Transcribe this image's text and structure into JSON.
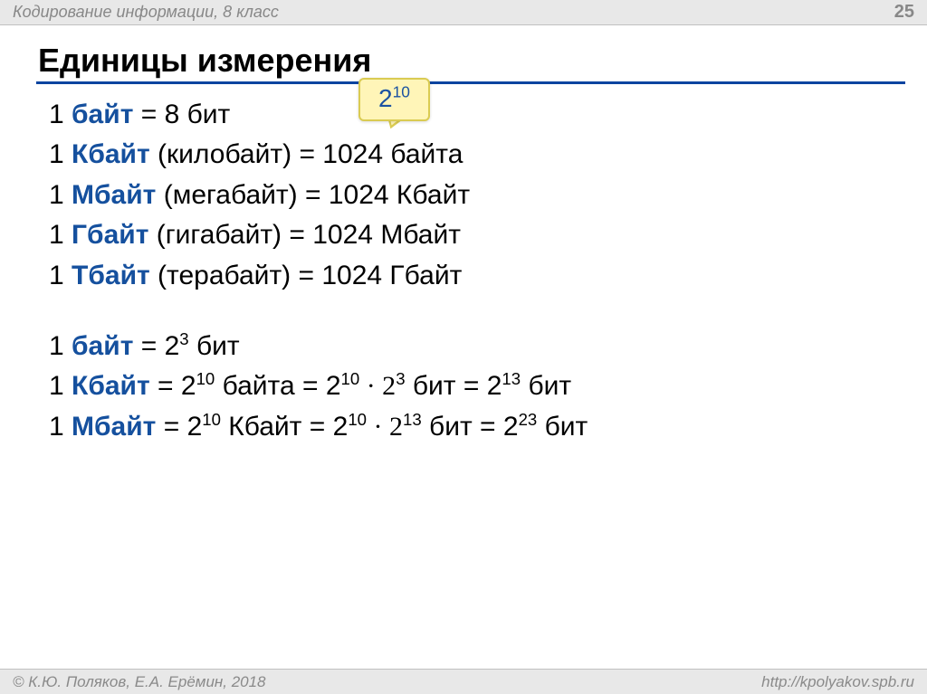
{
  "header": {
    "course": "Кодирование информации, 8 класс",
    "page": "25"
  },
  "title": "Единицы измерения",
  "callout": {
    "base": "2",
    "exp": "10"
  },
  "block1": [
    {
      "prefix": "1 ",
      "unit": "байт",
      "paren": "",
      "eq": " = 8 бит"
    },
    {
      "prefix": "1 ",
      "unit": "Кбайт",
      "paren": " (килобайт)",
      "eq": " = 1024 байта"
    },
    {
      "prefix": "1 ",
      "unit": "Мбайт",
      "paren": " (мегабайт)",
      "eq": " = 1024 Кбайт"
    },
    {
      "prefix": "1 ",
      "unit": "Гбайт",
      "paren": " (гигабайт)",
      "eq": " = 1024 Мбайт"
    },
    {
      "prefix": "1 ",
      "unit": "Тбайт",
      "paren": " (терабайт)",
      "eq": " = 1024 Гбайт"
    }
  ],
  "block2": {
    "l1": {
      "prefix": "1 ",
      "unit": "байт",
      "a": " = 2",
      "ae": "3",
      "b": " бит"
    },
    "l2": {
      "prefix": "1 ",
      "unit": "Кбайт",
      "a": " = 2",
      "ae": "10",
      "b": " байта = 2",
      "be": "10",
      "c": " · 2",
      "ce": "3",
      "d": " бит = 2",
      "de": "13",
      "e": " бит"
    },
    "l3": {
      "prefix": "1 ",
      "unit": "Мбайт",
      "a": " = 2",
      "ae": "10",
      "b": " Кбайт = 2",
      "be": "10",
      "c": " · 2",
      "ce": "13",
      "d": "  бит = 2",
      "de": "23",
      "e": " бит"
    }
  },
  "footer": {
    "left": "© К.Ю. Поляков, Е.А. Ерёмин, 2018",
    "right": "http://kpolyakov.spb.ru"
  },
  "colors": {
    "accent": "#15509e",
    "rule": "#0a44a0",
    "callout_bg": "#fff5b8",
    "callout_border": "#dacb52",
    "header_bg": "#e8e8e8"
  }
}
